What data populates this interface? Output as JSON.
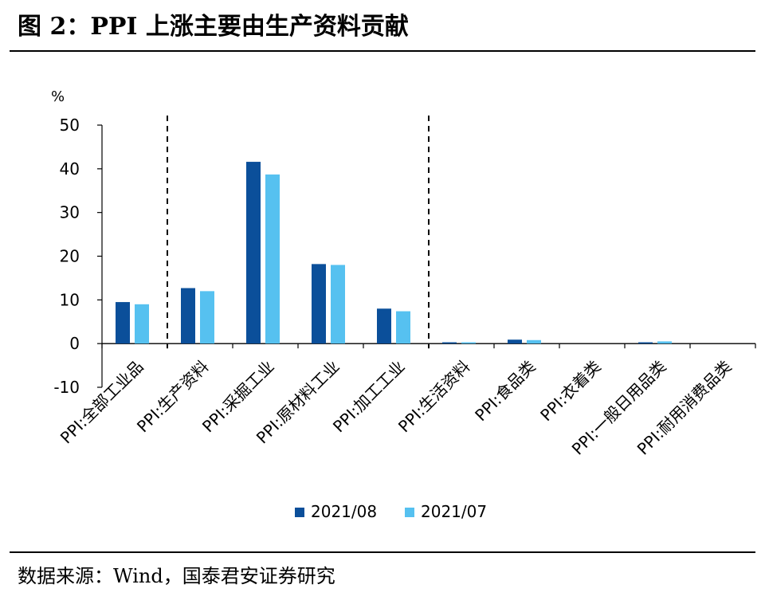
{
  "figure": {
    "title": "图 2：PPI 上涨主要由生产资料贡献",
    "source": "数据来源：Wind，国泰君安证券研究"
  },
  "chart_data": {
    "type": "bar",
    "ylabel": "%",
    "ylim": [
      -10,
      50
    ],
    "yticks": [
      -10,
      0,
      10,
      20,
      30,
      40,
      50
    ],
    "categories": [
      "PPI:全部工业品",
      "PPI:生产资料",
      "PPI:采掘工业",
      "PPI:原材料工业",
      "PPI:加工工业",
      "PPI:生活资料",
      "PPI:食品类",
      "PPI:衣着类",
      "PPI:一般日用品类",
      "PPI:耐用消费品类"
    ],
    "series": [
      {
        "name": "2021/08",
        "color": "#0B4F9A",
        "values": [
          9.5,
          12.7,
          41.6,
          18.2,
          8.0,
          0.3,
          0.9,
          0.0,
          0.3,
          0.0
        ]
      },
      {
        "name": "2021/07",
        "color": "#56C1F0",
        "values": [
          9.0,
          12.0,
          38.7,
          18.0,
          7.4,
          0.3,
          0.8,
          0.0,
          0.5,
          0.0
        ]
      }
    ],
    "separators_after_category": [
      0,
      4
    ],
    "legend_position": "bottom",
    "grid": false
  }
}
